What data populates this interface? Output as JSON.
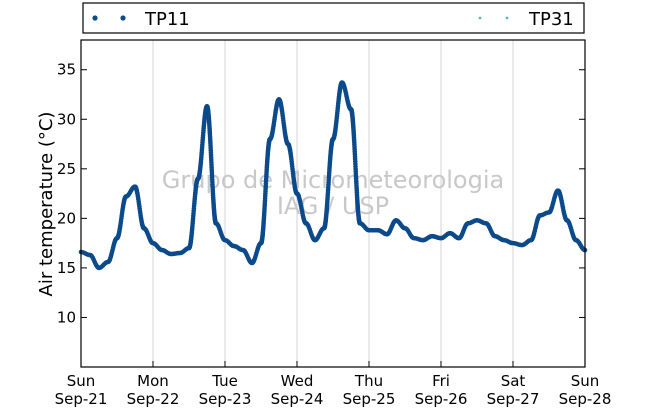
{
  "chart_data": {
    "type": "scatter",
    "title": "",
    "xlabel": "",
    "ylabel": "Air temperature (°C)",
    "watermark": [
      "Grupo de Micrometeorologia",
      "IAG / USP"
    ],
    "ylim": [
      5,
      38
    ],
    "yticks": [
      10,
      15,
      20,
      25,
      30,
      35
    ],
    "xlim": [
      "2024-09-21T00:00",
      "2024-09-28T00:00"
    ],
    "grid": "vertical-at-day-ticks",
    "legend_placement": "top",
    "xticks": [
      {
        "day": "Sun",
        "date": "Sep-21"
      },
      {
        "day": "Mon",
        "date": "Sep-22"
      },
      {
        "day": "Tue",
        "date": "Sep-23"
      },
      {
        "day": "Wed",
        "date": "Sep-24"
      },
      {
        "day": "Thu",
        "date": "Sep-25"
      },
      {
        "day": "Fri",
        "date": "Sep-26"
      },
      {
        "day": "Sat",
        "date": "Sep-27"
      },
      {
        "day": "Sun",
        "date": "Sep-28"
      }
    ],
    "series": [
      {
        "name": "TP11",
        "color": "#0b4a8b",
        "points": [
          [
            "2024-09-21T00:00",
            16.6
          ],
          [
            "2024-09-21T03:00",
            16.3
          ],
          [
            "2024-09-21T06:00",
            15.0
          ],
          [
            "2024-09-21T09:00",
            15.6
          ],
          [
            "2024-09-21T12:00",
            18.0
          ],
          [
            "2024-09-21T15:00",
            22.2
          ],
          [
            "2024-09-21T18:00",
            23.2
          ],
          [
            "2024-09-21T21:00",
            19.0
          ],
          [
            "2024-09-22T00:00",
            17.5
          ],
          [
            "2024-09-22T03:00",
            16.8
          ],
          [
            "2024-09-22T06:00",
            16.4
          ],
          [
            "2024-09-22T09:00",
            16.5
          ],
          [
            "2024-09-22T12:00",
            17.0
          ],
          [
            "2024-09-22T15:00",
            24.0
          ],
          [
            "2024-09-22T18:00",
            31.3
          ],
          [
            "2024-09-22T21:00",
            19.5
          ],
          [
            "2024-09-23T00:00",
            17.8
          ],
          [
            "2024-09-23T03:00",
            17.2
          ],
          [
            "2024-09-23T06:00",
            16.8
          ],
          [
            "2024-09-23T09:00",
            15.5
          ],
          [
            "2024-09-23T12:00",
            17.5
          ],
          [
            "2024-09-23T15:00",
            28.0
          ],
          [
            "2024-09-23T18:00",
            32.0
          ],
          [
            "2024-09-23T21:00",
            27.5
          ],
          [
            "2024-09-24T00:00",
            22.5
          ],
          [
            "2024-09-24T03:00",
            19.5
          ],
          [
            "2024-09-24T06:00",
            17.8
          ],
          [
            "2024-09-24T09:00",
            19.0
          ],
          [
            "2024-09-24T12:00",
            28.0
          ],
          [
            "2024-09-24T15:00",
            33.7
          ],
          [
            "2024-09-24T18:00",
            31.0
          ],
          [
            "2024-09-24T21:00",
            19.5
          ],
          [
            "2024-09-25T00:00",
            18.8
          ],
          [
            "2024-09-25T03:00",
            18.8
          ],
          [
            "2024-09-25T06:00",
            18.4
          ],
          [
            "2024-09-25T09:00",
            19.8
          ],
          [
            "2024-09-25T12:00",
            19.0
          ],
          [
            "2024-09-25T15:00",
            18.0
          ],
          [
            "2024-09-25T18:00",
            17.8
          ],
          [
            "2024-09-25T21:00",
            18.2
          ],
          [
            "2024-09-26T00:00",
            18.0
          ],
          [
            "2024-09-26T03:00",
            18.5
          ],
          [
            "2024-09-26T06:00",
            18.0
          ],
          [
            "2024-09-26T09:00",
            19.5
          ],
          [
            "2024-09-26T12:00",
            19.8
          ],
          [
            "2024-09-26T15:00",
            19.5
          ],
          [
            "2024-09-26T18:00",
            18.2
          ],
          [
            "2024-09-26T21:00",
            17.8
          ],
          [
            "2024-09-27T00:00",
            17.5
          ],
          [
            "2024-09-27T03:00",
            17.3
          ],
          [
            "2024-09-27T06:00",
            17.8
          ],
          [
            "2024-09-27T09:00",
            20.3
          ],
          [
            "2024-09-27T12:00",
            20.6
          ],
          [
            "2024-09-27T15:00",
            22.8
          ],
          [
            "2024-09-27T18:00",
            19.8
          ],
          [
            "2024-09-27T21:00",
            17.8
          ],
          [
            "2024-09-28T00:00",
            16.8
          ]
        ]
      },
      {
        "name": "TP31",
        "color": "#5fb8b8",
        "points": []
      }
    ]
  }
}
